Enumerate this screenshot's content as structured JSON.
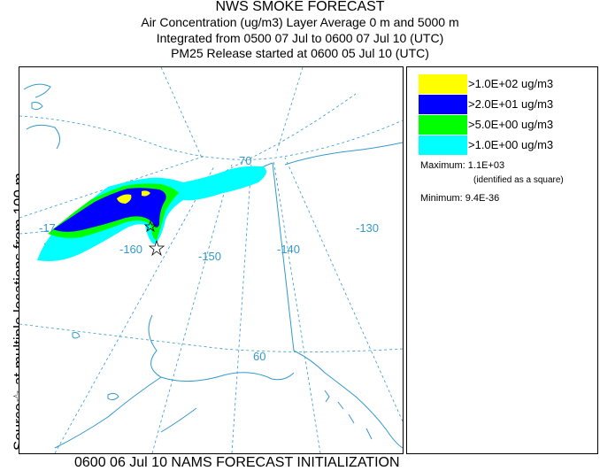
{
  "header": {
    "title": "NWS SMOKE FORECAST",
    "line2": "Air Concentration (ug/m3) Layer Average    0 m and  5000 m",
    "line3": "Integrated from 0500 07 Jul to 0600 07 Jul 10 (UTC)",
    "line4": "PM25 Release started at 0600 05 Jul 10 (UTC)"
  },
  "side_label": "Source☆ at multiple locations    from    100 m",
  "footer": "0600 06 Jul 10 NAMS FORECAST INITIALIZATION",
  "legend": {
    "items": [
      {
        "label": ">1.0E+02 ug/m3",
        "color": "#ffff00"
      },
      {
        "label": ">2.0E+01 ug/m3",
        "color": "#0000ff"
      },
      {
        "label": ">5.0E+00 ug/m3",
        "color": "#00ff00"
      },
      {
        "label": ">1.0E+00 ug/m3",
        "color": "#00ffff"
      }
    ],
    "maximum": "Maximum: 1.1E+03",
    "maximum_note": "(identified as a square)",
    "minimum": "Minimum: 9.4E-36"
  },
  "map": {
    "grid_labels": {
      "lon_170": "-17",
      "lon_160": "-160",
      "lon_150": "-150",
      "lon_140": "-140",
      "lon_130": "-130",
      "lat_70": "70",
      "lat_60": "60"
    },
    "colors": {
      "grid": "#3399cc",
      "coast": "#3399cc",
      "plume_low": "#00ffff",
      "plume_mid": "#00ff00",
      "plume_high": "#0000ff",
      "plume_max": "#ffff00"
    }
  }
}
